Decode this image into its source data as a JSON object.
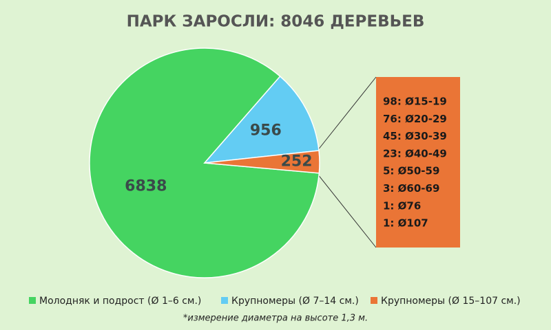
{
  "chart_data": {
    "type": "pie",
    "title": "ПАРК ЗАРОСЛИ: 8046 ДЕРЕВЬЕВ",
    "categories": [
      "Молодняк и подрост (Ø 1–6 см.)",
      "Крупномеры (Ø 7–14 см.)",
      "Крупномеры (Ø 15–107 см.)"
    ],
    "values": [
      6838,
      956,
      252
    ],
    "colors": [
      "#45d461",
      "#63ccf3",
      "#ea7536"
    ],
    "breakdown": [
      "98: Ø15-19",
      "76: Ø20-29",
      "45: Ø30-39",
      "23: Ø40-49",
      "5: Ø50-59",
      "3: Ø60-69",
      "1: Ø76",
      "1: Ø107"
    ],
    "footnote": "*измерение диаметра на высоте 1,3 м."
  }
}
